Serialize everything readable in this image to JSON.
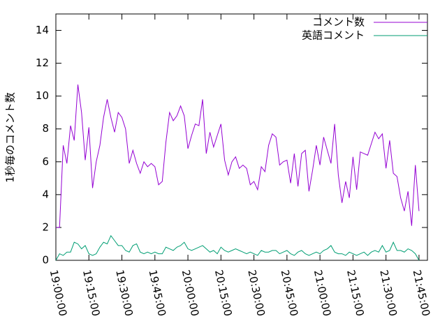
{
  "chart_data": {
    "type": "line",
    "y_label": "1秒毎のコメント数",
    "x": [
      "19:00:00",
      "19:01:40",
      "19:03:20",
      "19:05:00",
      "19:06:40",
      "19:08:20",
      "19:10:00",
      "19:11:40",
      "19:13:20",
      "19:15:00",
      "19:16:40",
      "19:18:20",
      "19:20:00",
      "19:21:40",
      "19:23:20",
      "19:25:00",
      "19:26:40",
      "19:28:20",
      "19:30:00",
      "19:31:40",
      "19:33:20",
      "19:35:00",
      "19:36:40",
      "19:38:20",
      "19:40:00",
      "19:41:40",
      "19:43:20",
      "19:45:00",
      "19:46:40",
      "19:48:20",
      "19:50:00",
      "19:51:40",
      "19:53:20",
      "19:55:00",
      "19:56:40",
      "19:58:20",
      "20:00:00",
      "20:01:40",
      "20:03:20",
      "20:05:00",
      "20:06:40",
      "20:08:20",
      "20:10:00",
      "20:11:40",
      "20:13:20",
      "20:15:00",
      "20:16:40",
      "20:18:20",
      "20:20:00",
      "20:21:40",
      "20:23:20",
      "20:25:00",
      "20:26:40",
      "20:28:20",
      "20:30:00",
      "20:31:40",
      "20:33:20",
      "20:35:00",
      "20:36:40",
      "20:38:20",
      "20:40:00",
      "20:41:40",
      "20:43:20",
      "20:45:00",
      "20:46:40",
      "20:48:20",
      "20:50:00",
      "20:51:40",
      "20:53:20",
      "20:55:00",
      "20:56:40",
      "20:58:20",
      "21:00:00",
      "21:01:40",
      "21:03:20",
      "21:05:00",
      "21:06:40",
      "21:08:20",
      "21:10:00",
      "21:11:40",
      "21:13:20",
      "21:15:00",
      "21:16:40",
      "21:18:20",
      "21:20:00",
      "21:21:40",
      "21:23:20",
      "21:25:00",
      "21:26:40",
      "21:28:20",
      "21:30:00",
      "21:31:40",
      "21:33:20",
      "21:35:00",
      "21:36:40",
      "21:38:20",
      "21:40:00",
      "21:41:40",
      "21:43:20",
      "21:45:00"
    ],
    "series": [
      {
        "name": "コメント数",
        "color": "#9400d3",
        "values": [
          2,
          2,
          7,
          5.9,
          8.2,
          7.3,
          10.7,
          9,
          6.1,
          8.1,
          4.4,
          6,
          7,
          8.7,
          9.8,
          8.7,
          7.8,
          9,
          8.7,
          8,
          5.9,
          6.7,
          5.9,
          5.3,
          6,
          5.7,
          5.9,
          5.7,
          4.6,
          4.8,
          7.2,
          9,
          8.5,
          8.8,
          9.4,
          8.8,
          6.8,
          7.6,
          8.3,
          8.2,
          9.8,
          6.5,
          7.8,
          6.9,
          7.6,
          8.3,
          6.1,
          5.2,
          6,
          6.3,
          5.6,
          5.8,
          5.6,
          4.6,
          4.8,
          4.3,
          5.7,
          5.4,
          7,
          7.7,
          7.5,
          5.8,
          6,
          6.1,
          4.7,
          6.5,
          4.5,
          6.5,
          6.7,
          4.2,
          5.5,
          7,
          5.8,
          7.5,
          6.7,
          5.9,
          8.3,
          5.2,
          3.5,
          4.8,
          3.8,
          6.3,
          4.3,
          6.6,
          6.5,
          6.4,
          7.1,
          7.8,
          7.4,
          7.7,
          5.6,
          7.3,
          5.3,
          5.1,
          3.8,
          3,
          4.2,
          2.1,
          5.8,
          3
        ]
      },
      {
        "name": "英語コメント",
        "color": "#009e73",
        "values": [
          0,
          0.4,
          0.3,
          0.5,
          0.5,
          1.1,
          1.0,
          0.7,
          0.9,
          0.4,
          0.3,
          0.4,
          0.8,
          1.1,
          1.0,
          1.5,
          1.2,
          0.9,
          0.9,
          0.6,
          0.5,
          0.9,
          1.0,
          0.5,
          0.4,
          0.5,
          0.4,
          0.5,
          0.4,
          0.4,
          0.8,
          0.7,
          0.6,
          0.8,
          0.9,
          1.1,
          0.7,
          0.6,
          0.7,
          0.8,
          0.9,
          0.7,
          0.5,
          0.6,
          0.4,
          0.8,
          0.6,
          0.5,
          0.6,
          0.7,
          0.6,
          0.5,
          0.4,
          0.5,
          0.4,
          0.3,
          0.6,
          0.5,
          0.5,
          0.6,
          0.6,
          0.4,
          0.5,
          0.6,
          0.4,
          0.3,
          0.5,
          0.6,
          0.4,
          0.3,
          0.4,
          0.5,
          0.4,
          0.6,
          0.7,
          0.9,
          0.5,
          0.4,
          0.4,
          0.3,
          0.5,
          0.4,
          0.3,
          0.4,
          0.5,
          0.3,
          0.5,
          0.6,
          0.5,
          0.9,
          0.5,
          0.6,
          1.1,
          0.6,
          0.6,
          0.5,
          0.7,
          0.6,
          0.4,
          0
        ]
      }
    ],
    "xlim": [
      "19:00:00",
      "21:48:50"
    ],
    "xticks": [
      "19:00:00",
      "19:15:00",
      "19:30:00",
      "19:45:00",
      "20:00:00",
      "20:15:00",
      "20:30:00",
      "20:45:00",
      "21:00:00",
      "21:15:00",
      "21:30:00",
      "21:45:00"
    ],
    "ylim": [
      0,
      15
    ],
    "yticks": [
      0,
      2,
      4,
      6,
      8,
      10,
      12,
      14
    ],
    "legend": "top-right"
  }
}
